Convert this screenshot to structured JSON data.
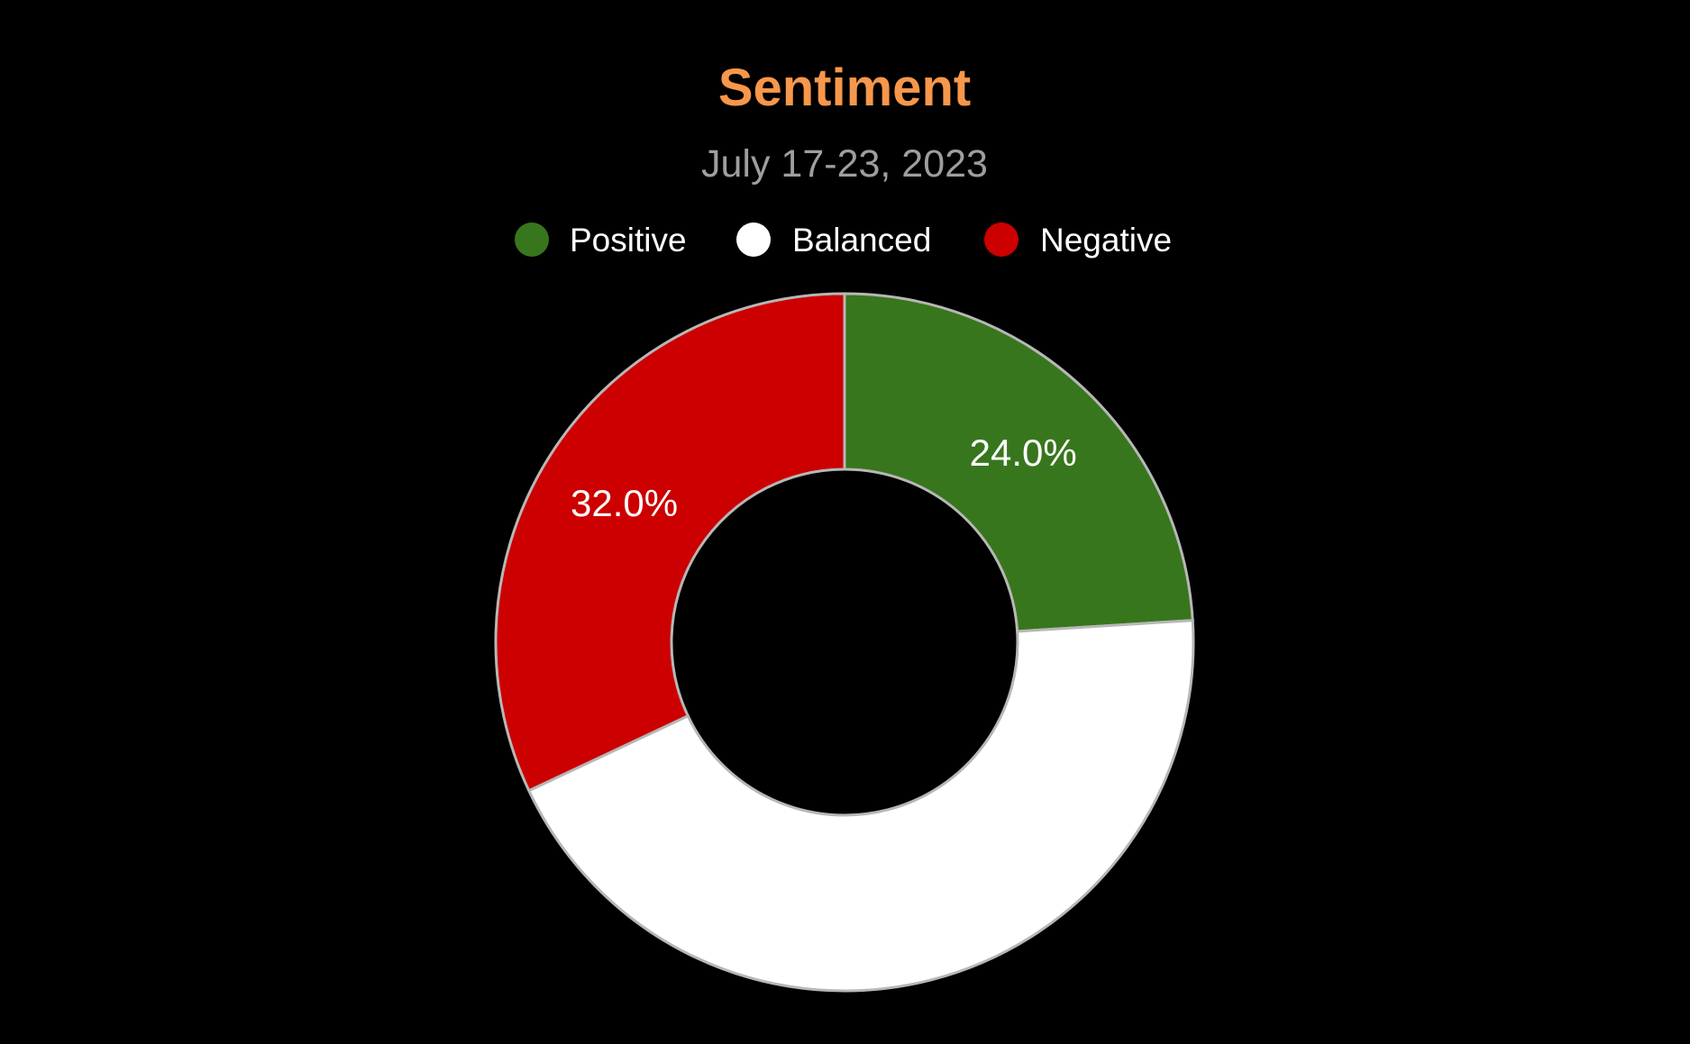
{
  "chart_data": {
    "type": "pie",
    "title": "Sentiment",
    "subtitle": "July 17-23, 2023",
    "donut": true,
    "legend_position": "top",
    "slices": [
      {
        "name": "Positive",
        "value": 24.0,
        "label": "24.0%",
        "color": "#38761d"
      },
      {
        "name": "Balanced",
        "value": 44.0,
        "label": "",
        "color": "#ffffff"
      },
      {
        "name": "Negative",
        "value": 32.0,
        "label": "32.0%",
        "color": "#cc0000"
      }
    ]
  },
  "colors": {
    "background": "#000000",
    "title": "#f6974b",
    "subtitle": "#9e9e9e",
    "slice_border": "#b7b7b7"
  }
}
